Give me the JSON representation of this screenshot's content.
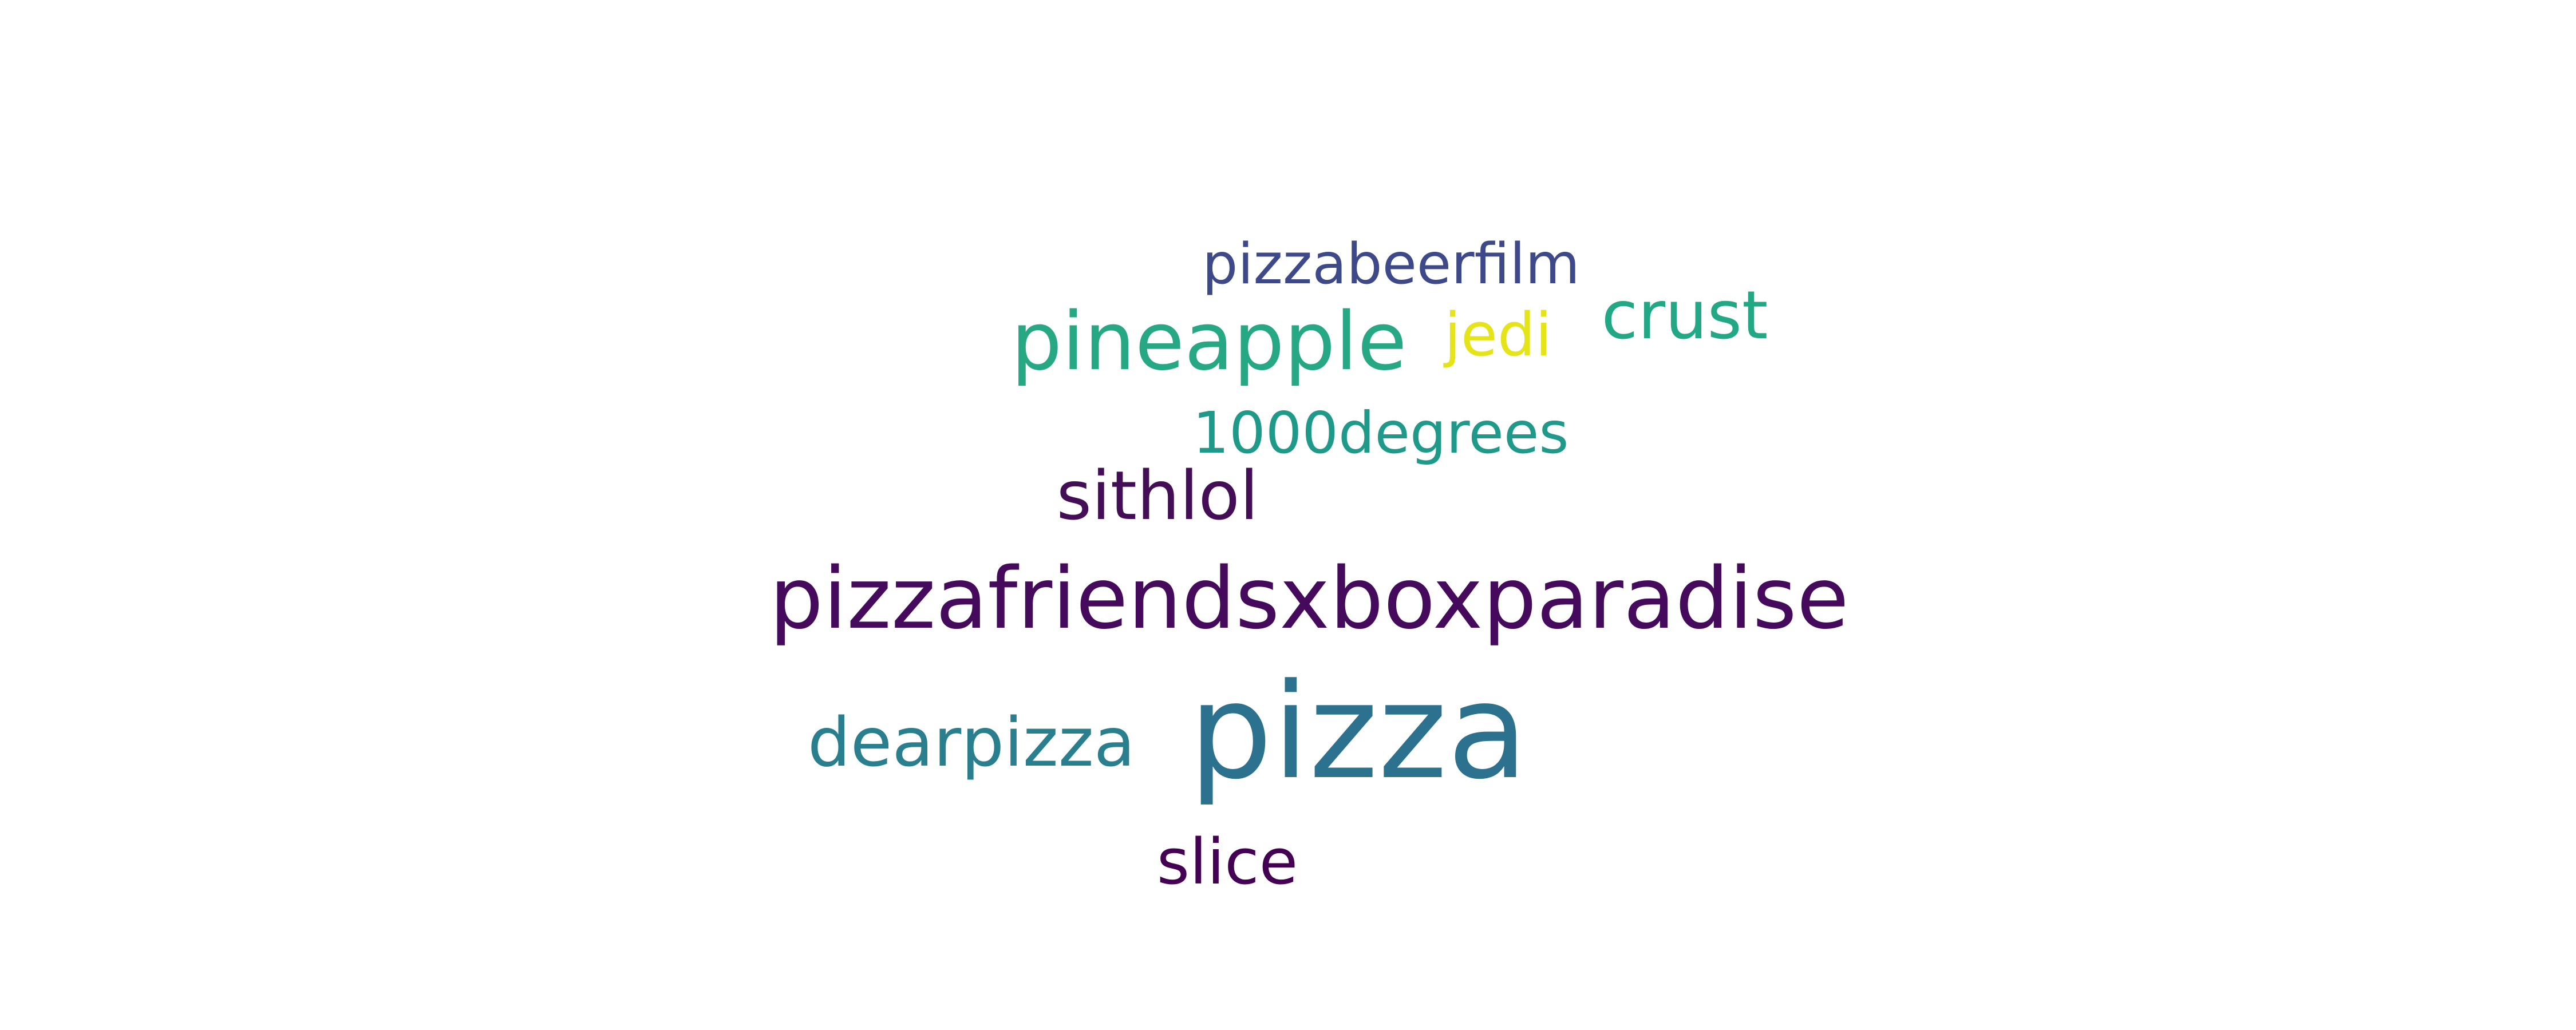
{
  "words": [
    {
      "text": "pizzabeerfilm",
      "color": "#3e4989"
    },
    {
      "text": "pineapple",
      "color": "#26a884"
    },
    {
      "text": "jedi",
      "color": "#e5e419"
    },
    {
      "text": "crust",
      "color": "#22a884"
    },
    {
      "text": "1000degrees",
      "color": "#1f9a8a"
    },
    {
      "text": "sithlol",
      "color": "#440e57"
    },
    {
      "text": "pizzafriendsxboxparadise",
      "color": "#450a5c"
    },
    {
      "text": "dearpizza",
      "color": "#2a7f8e"
    },
    {
      "text": "pizza",
      "color": "#2c728e"
    },
    {
      "text": "slice",
      "color": "#440154"
    }
  ]
}
